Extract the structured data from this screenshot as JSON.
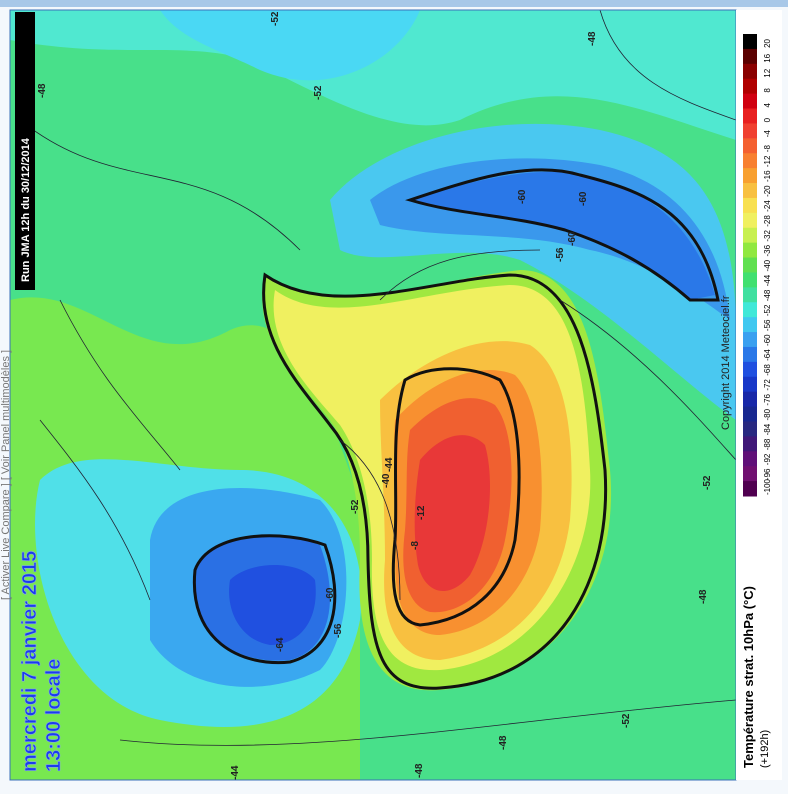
{
  "header": {
    "forecast_date": "mercredi 7 janvier 2015",
    "local_time": "13:00 locale",
    "run": "Run JMA 12h du 30/12/2014",
    "copyright": "Copyright 2014 Meteociel.fr",
    "side_links": "[ Activer Live Compare ]   [ Voir Panel multimodèles ]"
  },
  "legend": {
    "title": "Température strat. 10hPa (°C)",
    "lead_time": "(+192h)",
    "labels": [
      20,
      16,
      12,
      8,
      4,
      0,
      -4,
      -8,
      -12,
      -16,
      -20,
      -24,
      -28,
      -32,
      -36,
      -40,
      -44,
      -48,
      -52,
      -56,
      -60,
      -64,
      -68,
      -72,
      -76,
      -80,
      -84,
      -88,
      -92,
      -96,
      -100
    ],
    "colors": [
      "#000000",
      "#5a0000",
      "#8a0000",
      "#b00000",
      "#d00010",
      "#e82020",
      "#f04030",
      "#f46030",
      "#f88030",
      "#f8a030",
      "#f8c040",
      "#f8e050",
      "#f0f060",
      "#c8f050",
      "#90e840",
      "#60e050",
      "#40e070",
      "#40e0a0",
      "#40e8d8",
      "#40c8f0",
      "#3aa0f0",
      "#2a78e8",
      "#2050e0",
      "#1838c8",
      "#1828a8",
      "#182890",
      "#282880",
      "#401878",
      "#601078",
      "#701070",
      "#500050"
    ]
  },
  "contour_labels": [
    "-48",
    "-52",
    "-52",
    "-48",
    "-60",
    "-60",
    "-60",
    "-56",
    "-52",
    "-48",
    "-52",
    "-48",
    "-48",
    "-44",
    "-60",
    "-64",
    "-56",
    "-52",
    "-8",
    "-12",
    "-40",
    "-44"
  ]
}
